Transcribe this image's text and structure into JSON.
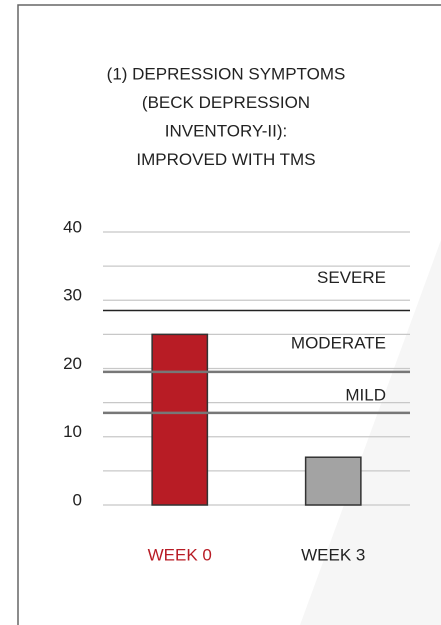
{
  "chart_data": {
    "type": "bar",
    "title": [
      "(1) DEPRESSION SYMPTOMS",
      "(BECK DEPRESSION",
      "INVENTORY-II):",
      "IMPROVED WITH TMS"
    ],
    "categories": [
      "WEEK 0",
      "WEEK 3"
    ],
    "values": [
      25,
      7
    ],
    "colors": [
      "#b81c25",
      "#a3a3a3"
    ],
    "category_label_colors": [
      "#b81c25",
      "#222222"
    ],
    "ylim": [
      0,
      40
    ],
    "yticks": [
      0,
      10,
      20,
      30,
      40
    ],
    "minor_grid": [
      5,
      15,
      25,
      35
    ],
    "grid": true,
    "thresholds": [
      {
        "label": "SEVERE",
        "value": 28.5
      },
      {
        "label": "MODERATE",
        "value": 19.5
      },
      {
        "label": "MILD",
        "value": 13.5
      }
    ]
  }
}
